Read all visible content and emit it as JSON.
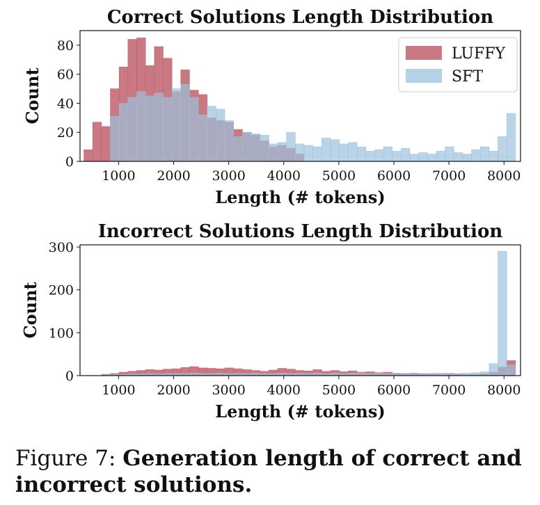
{
  "chart_data": [
    {
      "type": "bar",
      "title": "Correct Solutions Length Distribution",
      "xlabel": "Length (# tokens)",
      "ylabel": "Count",
      "xlim": [
        300,
        8300
      ],
      "ylim": [
        0,
        90
      ],
      "xticks": [
        "1000",
        "2000",
        "3000",
        "4000",
        "5000",
        "6000",
        "7000",
        "8000"
      ],
      "yticks": [
        "0",
        "20",
        "40",
        "60",
        "80"
      ],
      "legend": {
        "placement": "top-right",
        "entries": [
          "LUFFY",
          "SFT"
        ]
      },
      "bin_width": 160,
      "series": [
        {
          "name": "LUFFY",
          "color": "#c0616b",
          "x": [
            450,
            610,
            770,
            930,
            1090,
            1250,
            1410,
            1570,
            1730,
            1890,
            2050,
            2210,
            2370,
            2530,
            2690,
            2850,
            3010,
            3170,
            3330,
            3490,
            3650,
            3810,
            3970,
            4130,
            4290
          ],
          "values": [
            8,
            27,
            24,
            50,
            65,
            84,
            85,
            66,
            79,
            71,
            48,
            63,
            49,
            46,
            30,
            28,
            27,
            22,
            20,
            18,
            14,
            10,
            11,
            9,
            5
          ]
        },
        {
          "name": "SFT",
          "color": "#9cc1db",
          "x": [
            930,
            1090,
            1250,
            1410,
            1570,
            1730,
            1890,
            2050,
            2210,
            2370,
            2530,
            2690,
            2850,
            3010,
            3170,
            3330,
            3490,
            3650,
            3810,
            3970,
            4130,
            4290,
            4450,
            4610,
            4770,
            4930,
            5090,
            5250,
            5410,
            5570,
            5730,
            5890,
            6050,
            6210,
            6370,
            6530,
            6690,
            6850,
            7010,
            7170,
            7330,
            7490,
            7650,
            7810,
            7970,
            8130
          ],
          "values": [
            31,
            40,
            44,
            48,
            45,
            47,
            44,
            50,
            53,
            44,
            32,
            38,
            36,
            28,
            17,
            20,
            19,
            18,
            12,
            13,
            20,
            12,
            11,
            10,
            16,
            15,
            12,
            13,
            10,
            7,
            8,
            10,
            7,
            9,
            5,
            6,
            5,
            7,
            10,
            6,
            5,
            8,
            10,
            7,
            17,
            33
          ]
        }
      ]
    },
    {
      "type": "bar",
      "title": "Incorrect Solutions Length Distribution",
      "xlabel": "Length (# tokens)",
      "ylabel": "Count",
      "xlim": [
        300,
        8300
      ],
      "ylim": [
        0,
        305
      ],
      "xticks": [
        "1000",
        "2000",
        "3000",
        "4000",
        "5000",
        "6000",
        "7000",
        "8000"
      ],
      "yticks": [
        "0",
        "100",
        "200",
        "300"
      ],
      "bin_width": 160,
      "series": [
        {
          "name": "LUFFY",
          "color": "#c0616b",
          "x": [
            770,
            930,
            1090,
            1250,
            1410,
            1570,
            1730,
            1890,
            2050,
            2210,
            2370,
            2530,
            2690,
            2850,
            3010,
            3170,
            3330,
            3490,
            3650,
            3810,
            3970,
            4130,
            4290,
            4450,
            4610,
            4770,
            4930,
            5090,
            5250,
            5410,
            5570,
            5730,
            5890,
            6050,
            6210,
            6370,
            6530,
            6690,
            6850,
            7010,
            7170,
            7330,
            7490,
            7650,
            7810,
            7970,
            8130
          ],
          "values": [
            3,
            5,
            8,
            10,
            12,
            14,
            13,
            15,
            16,
            19,
            21,
            18,
            17,
            16,
            18,
            16,
            14,
            12,
            10,
            13,
            17,
            15,
            12,
            11,
            14,
            10,
            12,
            9,
            11,
            8,
            9,
            7,
            8,
            6,
            5,
            6,
            4,
            5,
            3,
            4,
            3,
            2,
            3,
            4,
            8,
            20,
            35
          ]
        },
        {
          "name": "SFT",
          "color": "#9cc1db",
          "x": [
            770,
            930,
            1090,
            1250,
            1410,
            1570,
            1730,
            1890,
            2050,
            2210,
            2370,
            2530,
            2690,
            2850,
            3010,
            3170,
            3330,
            3490,
            3650,
            3810,
            3970,
            4130,
            4290,
            4450,
            4610,
            4770,
            4930,
            5090,
            5250,
            5410,
            5570,
            5730,
            5890,
            6050,
            6210,
            6370,
            6530,
            6690,
            6850,
            7010,
            7170,
            7330,
            7490,
            7650,
            7810,
            7970,
            8130
          ],
          "values": [
            2,
            3,
            3,
            4,
            4,
            5,
            4,
            5,
            5,
            5,
            6,
            5,
            5,
            6,
            5,
            5,
            5,
            6,
            5,
            5,
            6,
            5,
            6,
            5,
            6,
            5,
            6,
            5,
            6,
            6,
            5,
            6,
            5,
            6,
            5,
            6,
            5,
            5,
            6,
            6,
            5,
            6,
            7,
            9,
            28,
            290,
            25
          ]
        }
      ]
    }
  ],
  "caption": {
    "lead": "Figure 7:",
    "bold": "Generation length of correct and incorrect solutions."
  }
}
